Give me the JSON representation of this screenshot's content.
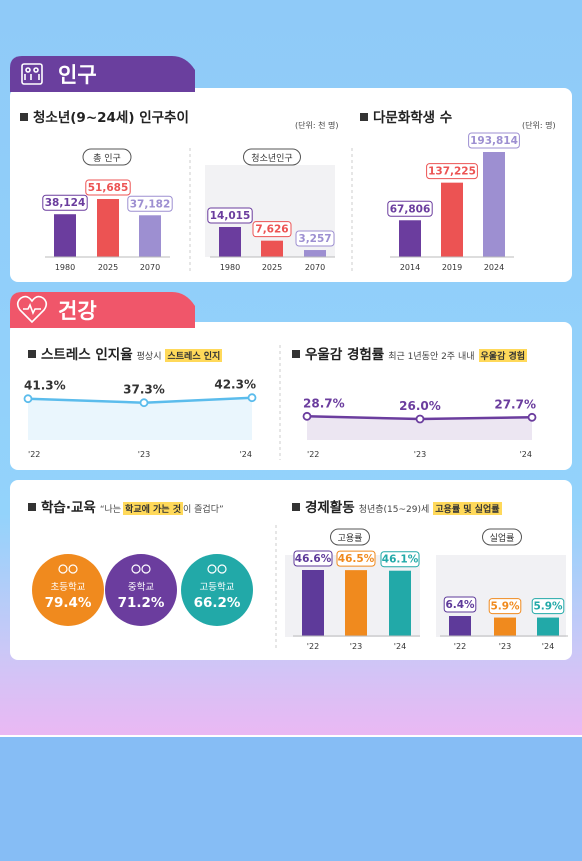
{
  "sections": {
    "population": "인구",
    "health": "건강"
  },
  "youth_header": {
    "title": "청소년(9~24세) 인구추이",
    "note": "(단위: 천 명)"
  },
  "economy_header": {
    "title": "경제활동",
    "note_parts": [
      "청년층(15~29)세",
      "고용률 및 실업률"
    ]
  },
  "chart_data": [
    {
      "type": "bar",
      "title": "총 인구",
      "categories": [
        "1980",
        "2025",
        "2070"
      ],
      "values": [
        38124,
        51685,
        37182
      ],
      "value_labels": [
        "38,124",
        "51,685",
        "37,182"
      ],
      "colors": [
        "#6b3d9e",
        "#ec5353",
        "#9d8fd1"
      ]
    },
    {
      "type": "bar",
      "title": "청소년인구",
      "categories": [
        "1980",
        "2025",
        "2070"
      ],
      "values": [
        14015,
        7626,
        3257
      ],
      "value_labels": [
        "14,015",
        "7,626",
        "3,257"
      ],
      "colors": [
        "#6b3d9e",
        "#ec5353",
        "#9d8fd1"
      ]
    },
    {
      "type": "bar",
      "title": "다문화학생 수",
      "note": "(단위: 명)",
      "categories": [
        "2014",
        "2019",
        "2024"
      ],
      "values": [
        67806,
        137225,
        193814
      ],
      "value_labels": [
        "67,806",
        "137,225",
        "193,814"
      ],
      "colors": [
        "#6b3d9e",
        "#ec5353",
        "#9d8fd1"
      ]
    },
    {
      "type": "line",
      "title": "스트레스 인지율",
      "note_parts": [
        "평상시",
        "스트레스 인지"
      ],
      "categories": [
        "'22",
        "'23",
        "'24"
      ],
      "values": [
        41.3,
        37.3,
        42.3
      ],
      "value_labels": [
        "41.3%",
        "37.3%",
        "42.3%"
      ],
      "color": "#5bbcec"
    },
    {
      "type": "line",
      "title": "우울감 경험률",
      "note_parts": [
        "최근 1년동안 2주 내내",
        "우울감 경험"
      ],
      "categories": [
        "'22",
        "'23",
        "'24"
      ],
      "values": [
        28.7,
        26.0,
        27.7
      ],
      "value_labels": [
        "28.7%",
        "26.0%",
        "27.7%"
      ],
      "color": "#6b3d9e"
    },
    {
      "type": "circle",
      "title": "학습·교육",
      "note_parts": [
        "“나는",
        "학교에 가는 것",
        "이 즐겁다”"
      ],
      "categories": [
        "초등학교",
        "중학교",
        "고등학교"
      ],
      "values": [
        79.4,
        71.2,
        66.2
      ],
      "value_labels": [
        "79.4%",
        "71.2%",
        "66.2%"
      ],
      "colors": [
        "#f08a1e",
        "#6b3d9e",
        "#22a9a8"
      ]
    },
    {
      "type": "bar",
      "title": "고용률",
      "categories": [
        "'22",
        "'23",
        "'24"
      ],
      "values": [
        46.6,
        46.5,
        46.1
      ],
      "value_labels": [
        "46.6%",
        "46.5%",
        "46.1%"
      ],
      "colors": [
        "#5e3a9a",
        "#f08a1e",
        "#22a9a8"
      ]
    },
    {
      "type": "bar",
      "title": "실업률",
      "categories": [
        "'22",
        "'23",
        "'24"
      ],
      "values": [
        6.4,
        5.9,
        5.9
      ],
      "value_labels": [
        "6.4%",
        "5.9%",
        "5.9%"
      ],
      "colors": [
        "#5e3a9a",
        "#f08a1e",
        "#22a9a8"
      ]
    }
  ]
}
